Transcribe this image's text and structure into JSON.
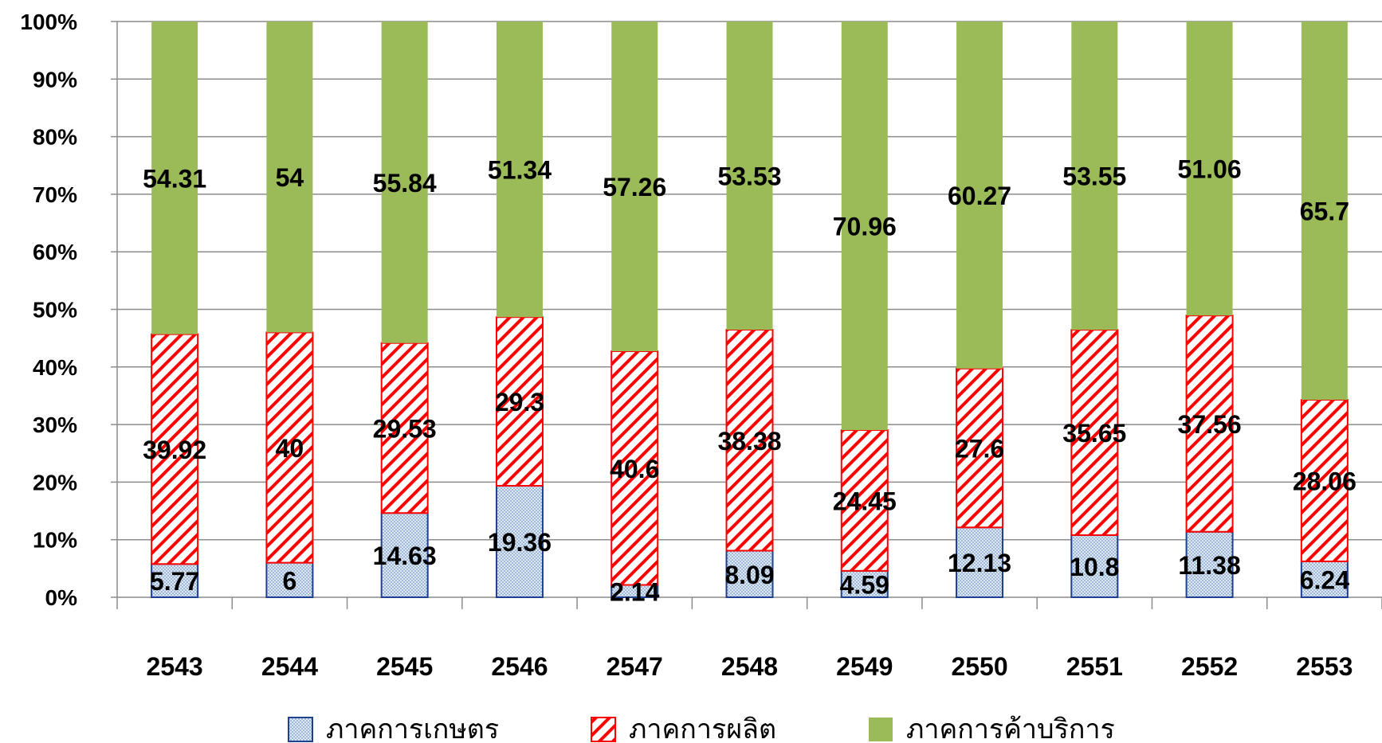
{
  "chart_data": {
    "type": "bar",
    "stacked": true,
    "percent": true,
    "categories": [
      "2543",
      "2544",
      "2545",
      "2546",
      "2547",
      "2548",
      "2549",
      "2550",
      "2551",
      "2552",
      "2553"
    ],
    "series": [
      {
        "name": "ภาคการเกษตร",
        "values": [
          5.77,
          6,
          14.63,
          19.36,
          2.14,
          8.09,
          4.59,
          12.13,
          10.8,
          11.38,
          6.24
        ],
        "labels": [
          "5.77",
          "6",
          "14.63",
          "19.36",
          "2.14",
          "8.09",
          "4.59",
          "12.13",
          "10.8",
          "11.38",
          "6.24"
        ],
        "fill": "dots",
        "color": "#1f3f8f",
        "bg": "#dce9f5"
      },
      {
        "name": "ภาคการผลิต",
        "values": [
          39.92,
          40,
          29.53,
          29.3,
          40.6,
          38.38,
          24.45,
          27.6,
          35.65,
          37.56,
          28.06
        ],
        "labels": [
          "39.92",
          "40",
          "29.53",
          "29.3",
          "40.6",
          "38.38",
          "24.45",
          "27.6",
          "35.65",
          "37.56",
          "28.06"
        ],
        "fill": "hatch",
        "color": "#ff0000",
        "bg": "#ffffff"
      },
      {
        "name": "ภาคการค้าบริการ",
        "values": [
          54.31,
          54,
          55.84,
          51.34,
          57.26,
          53.53,
          70.96,
          60.27,
          53.55,
          51.06,
          65.7
        ],
        "labels": [
          "54.31",
          "54",
          "55.84",
          "51.34",
          "57.26",
          "53.53",
          "70.96",
          "60.27",
          "53.55",
          "51.06",
          "65.7"
        ],
        "fill": "solid",
        "color": "#9bbb59",
        "bg": "#9bbb59"
      }
    ],
    "yticks": [
      "0%",
      "10%",
      "20%",
      "30%",
      "40%",
      "50%",
      "60%",
      "70%",
      "80%",
      "90%",
      "100%"
    ],
    "ylim": [
      0,
      100
    ],
    "grid": true,
    "legend_position": "bottom"
  }
}
